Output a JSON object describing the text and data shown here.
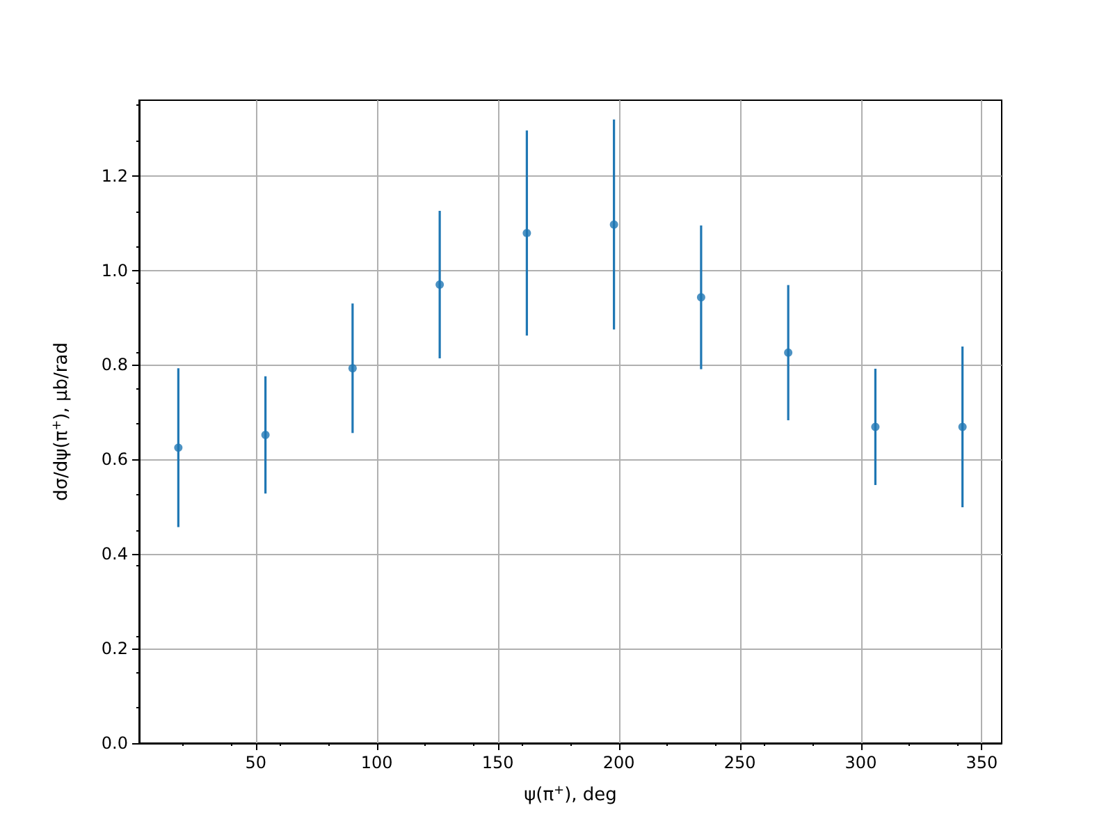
{
  "chart_data": {
    "type": "scatter",
    "xlabel": "ψ(π$^{+}$), deg",
    "ylabel": "dσ/dψ(π$^{+}$), μb/rad",
    "x": [
      18,
      54,
      90,
      126,
      162,
      198,
      234,
      270,
      306,
      342
    ],
    "values": [
      0.625,
      0.652,
      0.793,
      0.97,
      1.079,
      1.097,
      0.943,
      0.826,
      0.669,
      0.669
    ],
    "errors": [
      0.168,
      0.124,
      0.137,
      0.156,
      0.217,
      0.222,
      0.152,
      0.143,
      0.123,
      0.17
    ],
    "color": "#1f77b4",
    "marker": "circle",
    "xlim": [
      1.8,
      358.2
    ],
    "xticks": [
      50,
      100,
      150,
      200,
      250,
      300,
      350
    ],
    "ylim": [
      0,
      1.36
    ],
    "yticks": [
      {
        "value": 0,
        "label": "0.0"
      },
      0.2,
      0.4,
      0.6,
      0.8,
      {
        "value": 1,
        "label": "1.0"
      },
      1.2
    ],
    "grid": true
  }
}
